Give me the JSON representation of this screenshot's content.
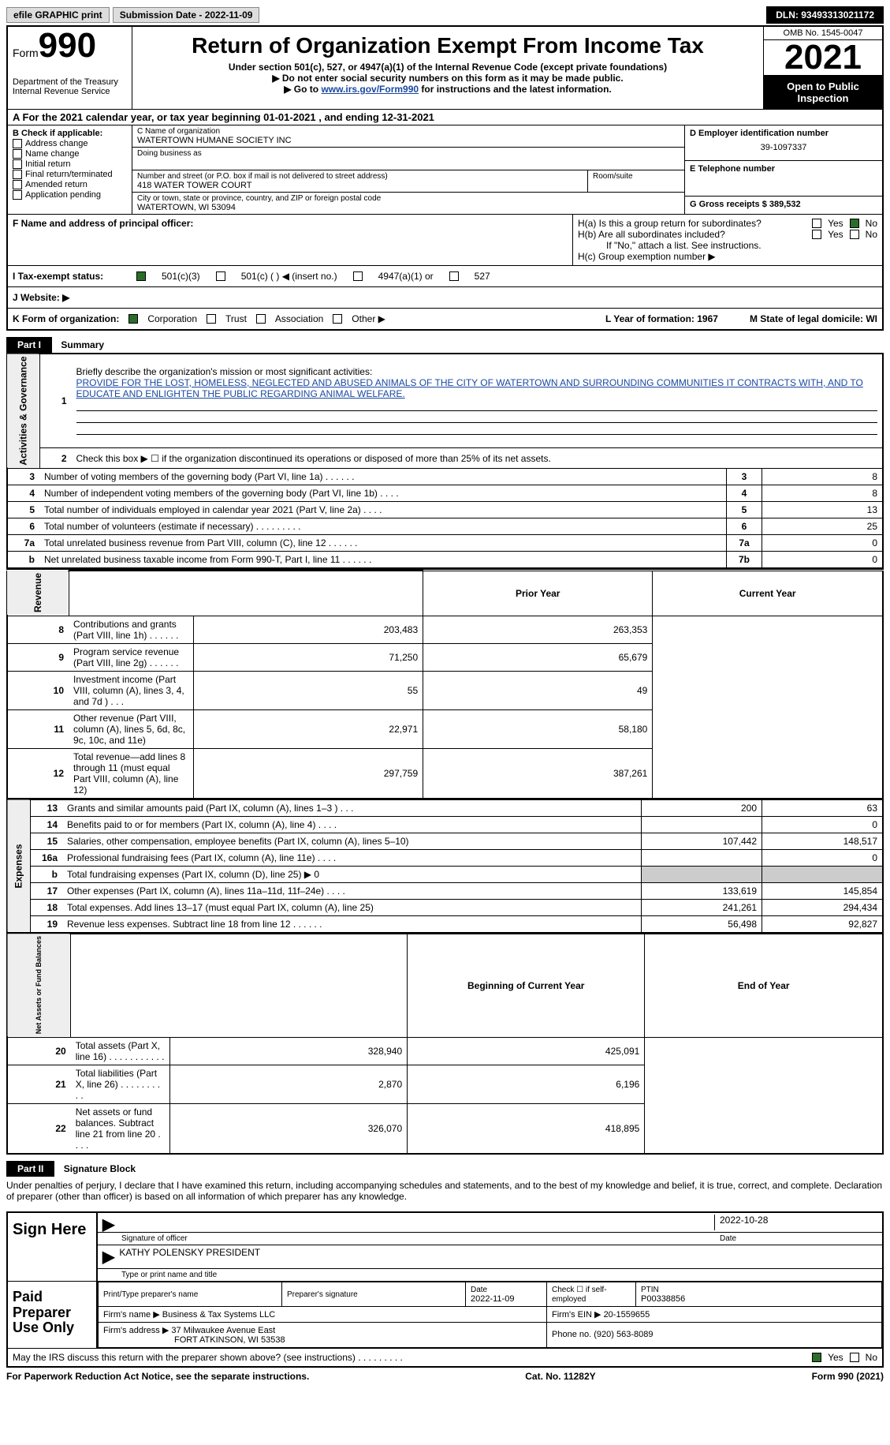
{
  "header": {
    "efile": "efile GRAPHIC print",
    "submission_label": "Submission Date - 2022-11-09",
    "dln": "DLN: 93493313021172"
  },
  "form_top": {
    "form_label": "Form",
    "form_number": "990",
    "dept": "Department of the Treasury",
    "irs": "Internal Revenue Service",
    "title": "Return of Organization Exempt From Income Tax",
    "subtitle": "Under section 501(c), 527, or 4947(a)(1) of the Internal Revenue Code (except private foundations)",
    "note1": "▶ Do not enter social security numbers on this form as it may be made public.",
    "note2_prefix": "▶ Go to ",
    "note2_link": "www.irs.gov/Form990",
    "note2_suffix": " for instructions and the latest information.",
    "omb": "OMB No. 1545-0047",
    "year": "2021",
    "open_public": "Open to Public Inspection"
  },
  "row_a": "A  For the 2021 calendar year, or tax year beginning 01-01-2021   , and ending 12-31-2021",
  "section_b": {
    "label": "B Check if applicable:",
    "items": [
      "Address change",
      "Name change",
      "Initial return",
      "Final return/terminated",
      "Amended return",
      "Application pending"
    ]
  },
  "section_c": {
    "name_label": "C Name of organization",
    "name": "WATERTOWN HUMANE SOCIETY INC",
    "dba_label": "Doing business as",
    "addr_label": "Number and street (or P.O. box if mail is not delivered to street address)",
    "addr": "418 WATER TOWER COURT",
    "room_label": "Room/suite",
    "city_label": "City or town, state or province, country, and ZIP or foreign postal code",
    "city": "WATERTOWN, WI  53094"
  },
  "section_de": {
    "d_label": "D Employer identification number",
    "ein": "39-1097337",
    "e_label": "E Telephone number",
    "g_label": "G Gross receipts $ 389,532"
  },
  "section_f": {
    "label": "F  Name and address of principal officer:"
  },
  "section_h": {
    "ha": "H(a)  Is this a group return for subordinates?",
    "hb": "H(b)  Are all subordinates included?",
    "hb_note": "If \"No,\" attach a list. See instructions.",
    "hc": "H(c)  Group exemption number ▶",
    "yes": "Yes",
    "no": "No"
  },
  "row_i": {
    "label": "I    Tax-exempt status:",
    "opt1": "501(c)(3)",
    "opt2": "501(c) (  ) ◀ (insert no.)",
    "opt3": "4947(a)(1) or",
    "opt4": "527"
  },
  "row_j": {
    "label": "J    Website: ▶"
  },
  "row_k": {
    "label": "K Form of organization:",
    "corp": "Corporation",
    "trust": "Trust",
    "assoc": "Association",
    "other": "Other ▶",
    "l_label": "L Year of formation: 1967",
    "m_label": "M State of legal domicile: WI"
  },
  "part1": {
    "header": "Part I",
    "title": "Summary",
    "line1_label": "Briefly describe the organization's mission or most significant activities:",
    "mission": "PROVIDE FOR THE LOST, HOMELESS, NEGLECTED AND ABUSED ANIMALS OF THE CITY OF WATERTOWN AND SURROUNDING COMMUNITIES IT CONTRACTS WITH, AND TO EDUCATE AND ENLIGHTEN THE PUBLIC REGARDING ANIMAL WELFARE.",
    "line2": "Check this box ▶ ☐  if the organization discontinued its operations or disposed of more than 25% of its net assets.",
    "sides": {
      "ag": "Activities & Governance",
      "rev": "Revenue",
      "exp": "Expenses",
      "net": "Net Assets or Fund Balances"
    },
    "rows_top": [
      {
        "n": "3",
        "d": "Number of voting members of the governing body (Part VI, line 1a)  .    .    .    .    .    .",
        "box": "3",
        "v": "8"
      },
      {
        "n": "4",
        "d": "Number of independent voting members of the governing body (Part VI, line 1b)  .    .    .    .",
        "box": "4",
        "v": "8"
      },
      {
        "n": "5",
        "d": "Total number of individuals employed in calendar year 2021 (Part V, line 2a)  .    .    .    .",
        "box": "5",
        "v": "13"
      },
      {
        "n": "6",
        "d": "Total number of volunteers (estimate if necessary)    .    .    .    .    .    .    .    .    .",
        "box": "6",
        "v": "25"
      },
      {
        "n": "7a",
        "d": "Total unrelated business revenue from Part VIII, column (C), line 12  .    .    .    .    .    .",
        "box": "7a",
        "v": "0"
      },
      {
        "n": "b",
        "d": "Net unrelated business taxable income from Form 990-T, Part I, line 11  .    .    .    .    .    .",
        "box": "7b",
        "v": "0"
      }
    ],
    "col_prior": "Prior Year",
    "col_current": "Current Year",
    "rows_rev": [
      {
        "n": "8",
        "d": "Contributions and grants (Part VIII, line 1h)   .    .    .    .    .    .",
        "p": "203,483",
        "c": "263,353"
      },
      {
        "n": "9",
        "d": "Program service revenue (Part VIII, line 2g)   .    .    .    .    .    .",
        "p": "71,250",
        "c": "65,679"
      },
      {
        "n": "10",
        "d": "Investment income (Part VIII, column (A), lines 3, 4, and 7d )   .    .    .",
        "p": "55",
        "c": "49"
      },
      {
        "n": "11",
        "d": "Other revenue (Part VIII, column (A), lines 5, 6d, 8c, 9c, 10c, and 11e)",
        "p": "22,971",
        "c": "58,180"
      },
      {
        "n": "12",
        "d": "Total revenue—add lines 8 through 11 (must equal Part VIII, column (A), line 12)",
        "p": "297,759",
        "c": "387,261"
      }
    ],
    "rows_exp": [
      {
        "n": "13",
        "d": "Grants and similar amounts paid (Part IX, column (A), lines 1–3 )   .    .    .",
        "p": "200",
        "c": "63"
      },
      {
        "n": "14",
        "d": "Benefits paid to or for members (Part IX, column (A), line 4)   .    .    .    .",
        "p": "",
        "c": "0"
      },
      {
        "n": "15",
        "d": "Salaries, other compensation, employee benefits (Part IX, column (A), lines 5–10)",
        "p": "107,442",
        "c": "148,517"
      },
      {
        "n": "16a",
        "d": "Professional fundraising fees (Part IX, column (A), line 11e)   .    .    .    .",
        "p": "",
        "c": "0"
      },
      {
        "n": "b",
        "d": "Total fundraising expenses (Part IX, column (D), line 25) ▶ 0",
        "p": "GREY",
        "c": "GREY"
      },
      {
        "n": "17",
        "d": "Other expenses (Part IX, column (A), lines 11a–11d, 11f–24e)   .    .    .    .",
        "p": "133,619",
        "c": "145,854"
      },
      {
        "n": "18",
        "d": "Total expenses. Add lines 13–17 (must equal Part IX, column (A), line 25)",
        "p": "241,261",
        "c": "294,434"
      },
      {
        "n": "19",
        "d": "Revenue less expenses. Subtract line 18 from line 12  .    .    .    .    .    .",
        "p": "56,498",
        "c": "92,827"
      }
    ],
    "col_begin": "Beginning of Current Year",
    "col_end": "End of Year",
    "rows_net": [
      {
        "n": "20",
        "d": "Total assets (Part X, line 16)  .    .    .    .    .    .    .    .    .    .    .",
        "p": "328,940",
        "c": "425,091"
      },
      {
        "n": "21",
        "d": "Total liabilities (Part X, line 26)  .    .    .    .    .    .    .    .    .    .",
        "p": "2,870",
        "c": "6,196"
      },
      {
        "n": "22",
        "d": "Net assets or fund balances. Subtract line 21 from line 20  .    .    .    .",
        "p": "326,070",
        "c": "418,895"
      }
    ]
  },
  "part2": {
    "header": "Part II",
    "title": "Signature Block",
    "penalties": "Under penalties of perjury, I declare that I have examined this return, including accompanying schedules and statements, and to the best of my knowledge and belief, it is true, correct, and complete. Declaration of preparer (other than officer) is based on all information of which preparer has any knowledge.",
    "sign_here": "Sign Here",
    "sig_officer": "Signature of officer",
    "sig_date": "2022-10-28",
    "date_label": "Date",
    "officer_name": "KATHY POLENSKY  PRESIDENT",
    "type_name": "Type or print name and title",
    "paid_prep": "Paid Preparer Use Only",
    "print_name_label": "Print/Type preparer's name",
    "prep_sig_label": "Preparer's signature",
    "prep_date_label": "Date",
    "prep_date": "2022-11-09",
    "check_if": "Check ☐ if self-employed",
    "ptin_label": "PTIN",
    "ptin": "P00338856",
    "firm_name_label": "Firm's name      ▶",
    "firm_name": "Business & Tax Systems LLC",
    "firm_ein_label": "Firm's EIN ▶",
    "firm_ein": "20-1559655",
    "firm_addr_label": "Firm's address ▶",
    "firm_addr1": "37 Milwaukee Avenue East",
    "firm_addr2": "FORT ATKINSON, WI  53538",
    "phone_label": "Phone no.",
    "phone": "(920) 563-8089",
    "may_irs": "May the IRS discuss this return with the preparer shown above? (see instructions)   .    .    .    .    .    .    .    .    .",
    "yes": "Yes",
    "no": "No"
  },
  "footer": {
    "paperwork": "For Paperwork Reduction Act Notice, see the separate instructions.",
    "cat": "Cat. No. 11282Y",
    "form": "Form 990 (2021)"
  },
  "colors": {
    "link": "#1a48a1",
    "black": "#000000",
    "green_check": "#2a6e2a"
  }
}
